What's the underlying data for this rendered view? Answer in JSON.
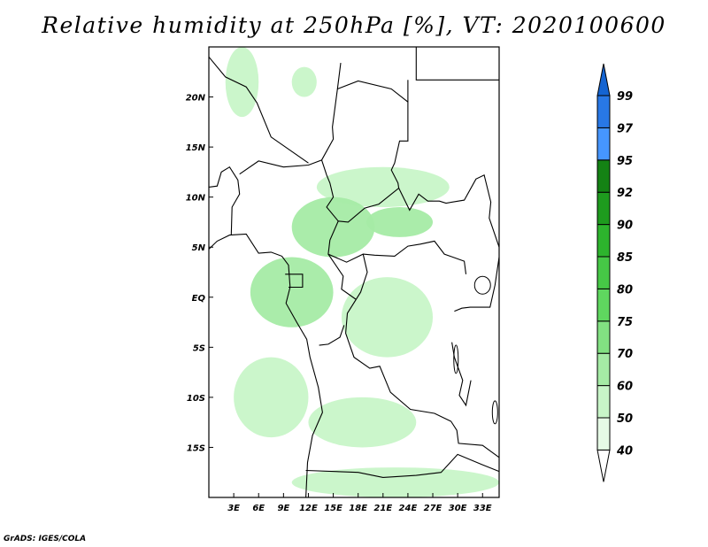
{
  "title": "Relative humidity at 250hPa [%], VT: 2020100600",
  "footer": "GrADS: IGES/COLA",
  "map": {
    "lon_range": [
      0,
      35
    ],
    "lat_range": [
      -20,
      25
    ],
    "lat_ticks": [
      "20N",
      "15N",
      "10N",
      "5N",
      "EQ",
      "5S",
      "10S",
      "15S"
    ],
    "lon_ticks": [
      "3E",
      "6E",
      "9E",
      "12E",
      "15E",
      "18E",
      "21E",
      "24E",
      "27E",
      "30E",
      "33E"
    ]
  },
  "colorbar": {
    "labels": [
      "40",
      "50",
      "60",
      "70",
      "75",
      "80",
      "85",
      "90",
      "92",
      "95",
      "97",
      "99"
    ],
    "colors": [
      "#ffffff",
      "#e6fae6",
      "#c8f5c8",
      "#a5eba5",
      "#82e182",
      "#5fd75f",
      "#46c846",
      "#2db42d",
      "#1e9b1e",
      "#148214",
      "#4696ff",
      "#2878e6",
      "#1464d2"
    ]
  },
  "chart_data": {
    "type": "heatmap",
    "title": "Relative humidity at 250hPa [%], VT: 2020100600",
    "variable": "Relative humidity at 250hPa",
    "units": "%",
    "valid_time": "2020100600",
    "levels": [
      40,
      50,
      60,
      70,
      75,
      80,
      85,
      90,
      92,
      95,
      97,
      99
    ],
    "lon_range": [
      0,
      35
    ],
    "lat_range": [
      -20,
      25
    ],
    "regions": [
      {
        "lon": [
          2,
          6
        ],
        "lat": [
          18,
          25
        ],
        "class": 50
      },
      {
        "lon": [
          10,
          13
        ],
        "lat": [
          20,
          23
        ],
        "class": 50
      },
      {
        "lon": [
          13,
          29
        ],
        "lat": [
          9,
          13
        ],
        "class": 50
      },
      {
        "lon": [
          10,
          20
        ],
        "lat": [
          4,
          10
        ],
        "class": 60
      },
      {
        "lon": [
          19,
          27
        ],
        "lat": [
          6,
          9
        ],
        "class": 60
      },
      {
        "lon": [
          5,
          15
        ],
        "lat": [
          -3,
          4
        ],
        "class": 60
      },
      {
        "lon": [
          16,
          27
        ],
        "lat": [
          -6,
          2
        ],
        "class": 50
      },
      {
        "lon": [
          3,
          12
        ],
        "lat": [
          -14,
          -6
        ],
        "class": 50
      },
      {
        "lon": [
          12,
          25
        ],
        "lat": [
          -15,
          -10
        ],
        "class": 50
      },
      {
        "lon": [
          10,
          35
        ],
        "lat": [
          -20,
          -17
        ],
        "class": 50
      }
    ]
  }
}
